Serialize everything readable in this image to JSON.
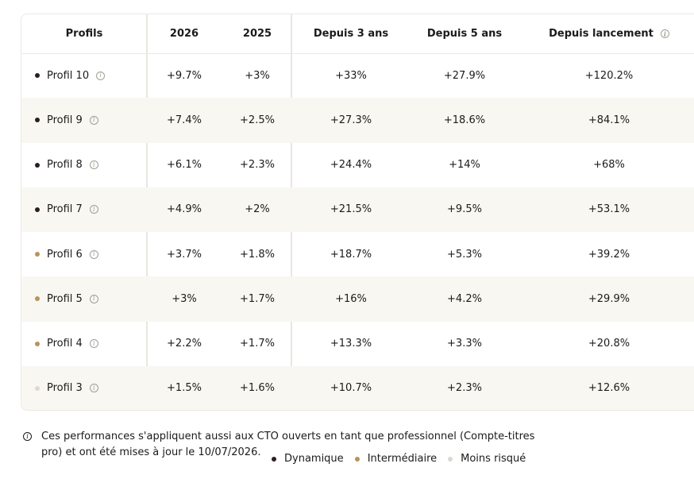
{
  "colors": {
    "dynamique": "#2b1f1d",
    "intermediaire": "#b8945a",
    "moins_risque": "#ddd9d0"
  },
  "table": {
    "headers": {
      "profils": "Profils",
      "y2026": "2026",
      "y2025": "2025",
      "trois_ans": "Depuis 3 ans",
      "cinq_ans": "Depuis 5 ans",
      "lancement": "Depuis lancement"
    },
    "rows": [
      {
        "name": "Profil 10",
        "risk": "dynamique",
        "y2026": "+9.7%",
        "y2025": "+3%",
        "trois_ans": "+33%",
        "cinq_ans": "+27.9%",
        "lancement": "+120.2%"
      },
      {
        "name": "Profil 9",
        "risk": "dynamique",
        "y2026": "+7.4%",
        "y2025": "+2.5%",
        "trois_ans": "+27.3%",
        "cinq_ans": "+18.6%",
        "lancement": "+84.1%"
      },
      {
        "name": "Profil 8",
        "risk": "dynamique",
        "y2026": "+6.1%",
        "y2025": "+2.3%",
        "trois_ans": "+24.4%",
        "cinq_ans": "+14%",
        "lancement": "+68%"
      },
      {
        "name": "Profil 7",
        "risk": "dynamique",
        "y2026": "+4.9%",
        "y2025": "+2%",
        "trois_ans": "+21.5%",
        "cinq_ans": "+9.5%",
        "lancement": "+53.1%"
      },
      {
        "name": "Profil 6",
        "risk": "intermediaire",
        "y2026": "+3.7%",
        "y2025": "+1.8%",
        "trois_ans": "+18.7%",
        "cinq_ans": "+5.3%",
        "lancement": "+39.2%"
      },
      {
        "name": "Profil 5",
        "risk": "intermediaire",
        "y2026": "+3%",
        "y2025": "+1.7%",
        "trois_ans": "+16%",
        "cinq_ans": "+4.2%",
        "lancement": "+29.9%"
      },
      {
        "name": "Profil 4",
        "risk": "intermediaire",
        "y2026": "+2.2%",
        "y2025": "+1.7%",
        "trois_ans": "+13.3%",
        "cinq_ans": "+3.3%",
        "lancement": "+20.8%"
      },
      {
        "name": "Profil 3",
        "risk": "moins_risque",
        "y2026": "+1.5%",
        "y2025": "+1.6%",
        "trois_ans": "+10.7%",
        "cinq_ans": "+2.3%",
        "lancement": "+12.6%"
      }
    ]
  },
  "icons": {
    "info": "info-icon"
  },
  "footnote": {
    "text": "Ces performances s'appliquent aussi aux CTO ouverts en tant que professionnel (Compte-titres pro) et ont été mises à jour le 10/07/2026."
  },
  "legend": {
    "dynamique": "Dynamique",
    "intermediaire": "Intermédiaire",
    "moins_risque": "Moins risqué"
  }
}
